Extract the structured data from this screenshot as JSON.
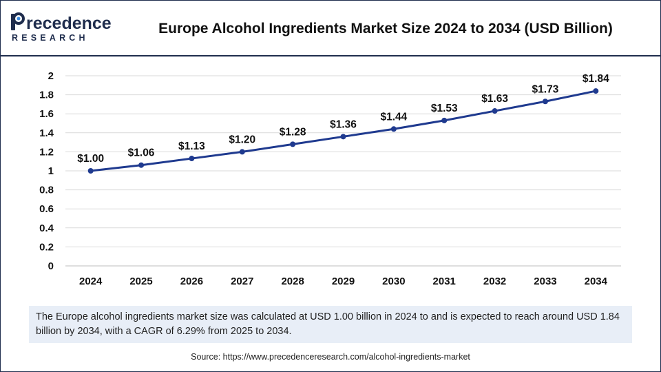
{
  "header": {
    "logo_name": "Precedence",
    "logo_sub": "RESEARCH",
    "title": "Europe Alcohol Ingredients Market Size 2024 to 2034 (USD Billion)"
  },
  "chart_data": {
    "type": "line",
    "title": "Europe Alcohol Ingredients Market Size 2024 to 2034 (USD Billion)",
    "xlabel": "",
    "ylabel": "",
    "categories": [
      "2024",
      "2025",
      "2026",
      "2027",
      "2028",
      "2029",
      "2030",
      "2031",
      "2032",
      "2033",
      "2034"
    ],
    "values": [
      1.0,
      1.06,
      1.13,
      1.2,
      1.28,
      1.36,
      1.44,
      1.53,
      1.63,
      1.73,
      1.84
    ],
    "data_labels": [
      "$1.00",
      "$1.06",
      "$1.13",
      "$1.20",
      "$1.28",
      "$1.36",
      "$1.44",
      "$1.53",
      "$1.63",
      "$1.73",
      "$1.84"
    ],
    "y_ticks": [
      "0",
      "0.2",
      "0.4",
      "0.6",
      "0.8",
      "1",
      "1.2",
      "1.4",
      "1.6",
      "1.8",
      "2"
    ],
    "ylim": [
      0,
      2
    ],
    "grid": true,
    "legend": "none",
    "line_color": "#1f3a8f",
    "grid_color": "#d9d9d9"
  },
  "description": "The Europe alcohol ingredients market size was calculated at USD 1.00 billion in 2024 to and is expected to reach around USD 1.84 billion by 2034, with a CAGR of 6.29% from 2025 to 2034.",
  "source": "Source: https://www.precedenceresearch.com/alcohol-ingredients-market"
}
